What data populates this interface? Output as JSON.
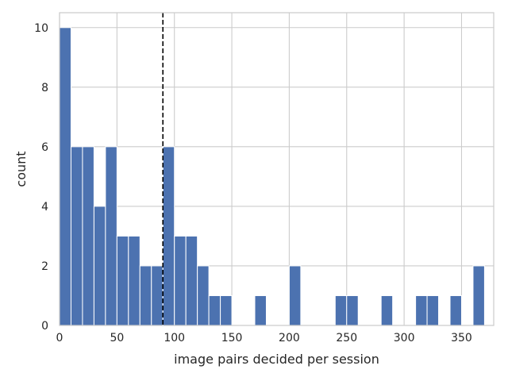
{
  "chart_data": {
    "type": "bar",
    "xlabel": "image pairs decided per session",
    "ylabel": "count",
    "xlim": [
      0,
      378
    ],
    "ylim": [
      0,
      10.5
    ],
    "xticks": [
      0,
      50,
      100,
      150,
      200,
      250,
      300,
      350
    ],
    "yticks": [
      0,
      2,
      4,
      6,
      8,
      10
    ],
    "grid": true,
    "bar_color": "#4c72b0",
    "vline": {
      "x": 90,
      "style": "dashed",
      "color": "#000000"
    },
    "bin_width": 10,
    "bins": [
      {
        "start": 0,
        "count": 10
      },
      {
        "start": 10,
        "count": 6
      },
      {
        "start": 20,
        "count": 6
      },
      {
        "start": 30,
        "count": 4
      },
      {
        "start": 40,
        "count": 6
      },
      {
        "start": 50,
        "count": 3
      },
      {
        "start": 60,
        "count": 3
      },
      {
        "start": 70,
        "count": 2
      },
      {
        "start": 80,
        "count": 2
      },
      {
        "start": 90,
        "count": 6
      },
      {
        "start": 100,
        "count": 3
      },
      {
        "start": 110,
        "count": 3
      },
      {
        "start": 120,
        "count": 2
      },
      {
        "start": 130,
        "count": 1
      },
      {
        "start": 140,
        "count": 1
      },
      {
        "start": 170,
        "count": 1
      },
      {
        "start": 200,
        "count": 2
      },
      {
        "start": 240,
        "count": 1
      },
      {
        "start": 250,
        "count": 1
      },
      {
        "start": 280,
        "count": 1
      },
      {
        "start": 310,
        "count": 1
      },
      {
        "start": 320,
        "count": 1
      },
      {
        "start": 340,
        "count": 1
      },
      {
        "start": 360,
        "count": 2
      }
    ]
  }
}
